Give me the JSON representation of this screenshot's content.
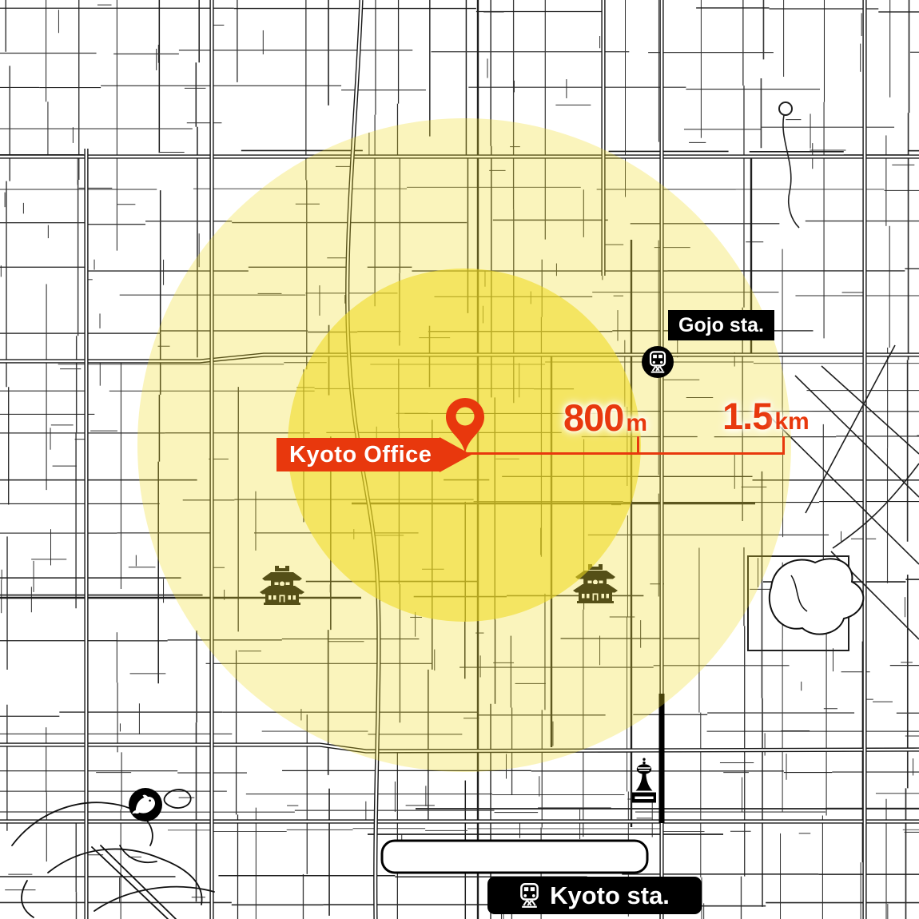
{
  "map": {
    "office": {
      "label": "Kyoto Office"
    },
    "stations": {
      "gojo": {
        "label": "Gojo sta."
      },
      "kyoto": {
        "label": "Kyoto sta."
      }
    },
    "distances": {
      "inner": {
        "value": "800",
        "unit": "m"
      },
      "outer": {
        "value": "1.5",
        "unit": "km"
      }
    },
    "colors": {
      "accent_red": "#e8380d",
      "radius_yellow": "#f0db21",
      "map_line": "#222222",
      "label_bg": "#000000",
      "label_text": "#ffffff"
    },
    "icons": [
      "map-pin-icon",
      "train-icon",
      "temple-icon",
      "tower-icon",
      "dolphin-icon"
    ]
  }
}
